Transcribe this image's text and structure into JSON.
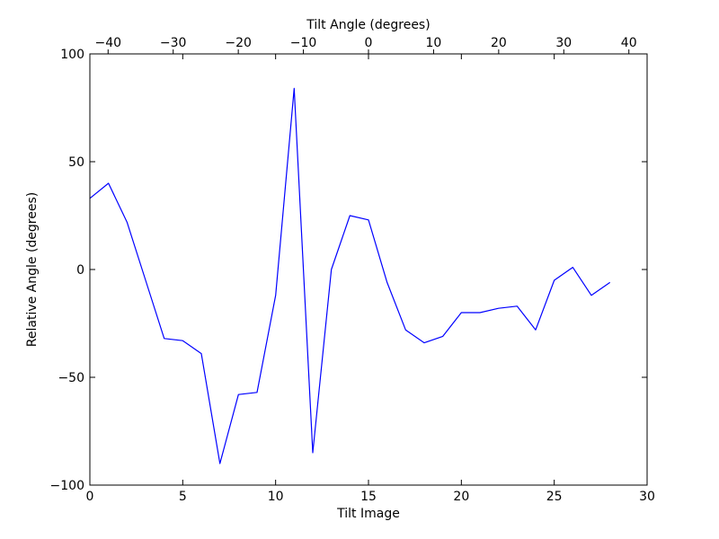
{
  "chart_data": {
    "type": "line",
    "title": "",
    "xlabel": "Tilt Image",
    "ylabel": "Relative Angle (degrees)",
    "top_xlabel": "Tilt Angle (degrees)",
    "xlim": [
      0,
      30
    ],
    "ylim": [
      -100,
      100
    ],
    "top_xlim": [
      -42.8,
      42.8
    ],
    "xticks": [
      "0",
      "5",
      "10",
      "15",
      "20",
      "25",
      "30"
    ],
    "xtick_values": [
      0,
      5,
      10,
      15,
      20,
      25,
      30
    ],
    "yticks": [
      "−100",
      "−50",
      "0",
      "50",
      "100"
    ],
    "ytick_values": [
      -100,
      -50,
      0,
      50,
      100
    ],
    "top_xticks": [
      "−40",
      "−30",
      "−20",
      "−10",
      "0",
      "10",
      "20",
      "30",
      "40"
    ],
    "top_xtick_values": [
      -40,
      -30,
      -20,
      -10,
      0,
      10,
      20,
      30,
      40
    ],
    "grid": false,
    "line_color": "#0000ff",
    "series": [
      {
        "x": [
          0,
          1,
          2,
          3,
          4,
          5,
          6,
          7,
          8,
          9,
          10,
          11,
          12,
          13,
          14,
          15,
          16,
          17,
          18,
          19,
          20,
          21,
          22,
          23,
          24,
          25,
          26,
          27,
          28
        ],
        "values": [
          33,
          40,
          22,
          -5,
          -32,
          -33,
          -39,
          -90,
          -58,
          -57,
          -12,
          84,
          -85,
          0,
          25,
          23,
          -6,
          -28,
          -34,
          -31,
          -20,
          -20,
          -18,
          -17,
          -28,
          -5,
          1,
          -12,
          -6
        ]
      }
    ]
  }
}
